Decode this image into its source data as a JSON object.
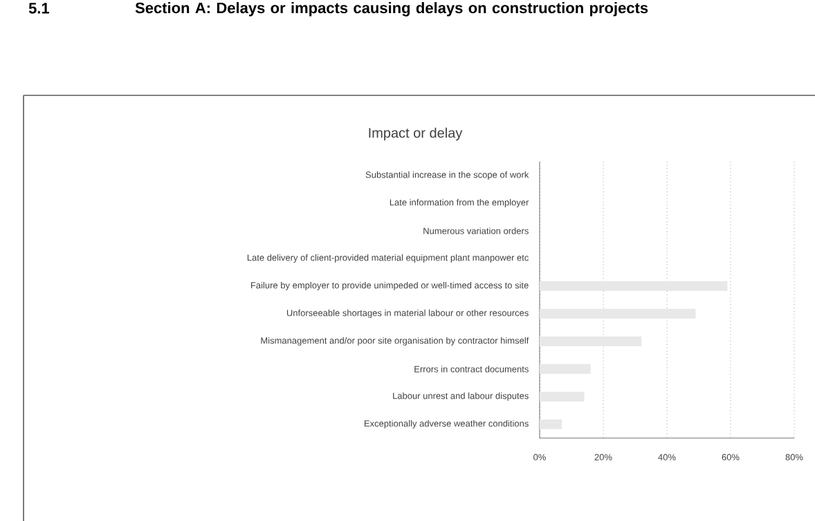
{
  "chart_data": {
    "type": "bar",
    "orientation": "horizontal",
    "title": "Impact or delay",
    "annotations": [
      "5.1",
      "Section A: Delays or impacts causing delays on construction projects"
    ],
    "categories": [
      "Substantial increase in the scope of work",
      "Late information from the employer",
      "Numerous variation orders",
      "Late delivery of client-provided material equipment plant manpower etc",
      "Failure by employer to provide unimpeded or well-timed access to site",
      "Unforseeable shortages in material labour or other resources",
      "Mismanagement and/or poor site organisation by contractor himself",
      "Errors in contract documents",
      "Labour unrest and labour disputes",
      "Exceptionally adverse weather conditions"
    ],
    "values": [
      null,
      null,
      null,
      null,
      59,
      49,
      32,
      16,
      14,
      7
    ],
    "color": "#e8e8e8",
    "xlim": [
      0,
      80
    ],
    "xticks": [
      {
        "value": 0,
        "label": "0%"
      },
      {
        "value": 20,
        "label": "20%"
      },
      {
        "value": 40,
        "label": "40%"
      },
      {
        "value": 60,
        "label": "60%"
      },
      {
        "value": 80,
        "label": "80%"
      }
    ],
    "grid": "x"
  }
}
